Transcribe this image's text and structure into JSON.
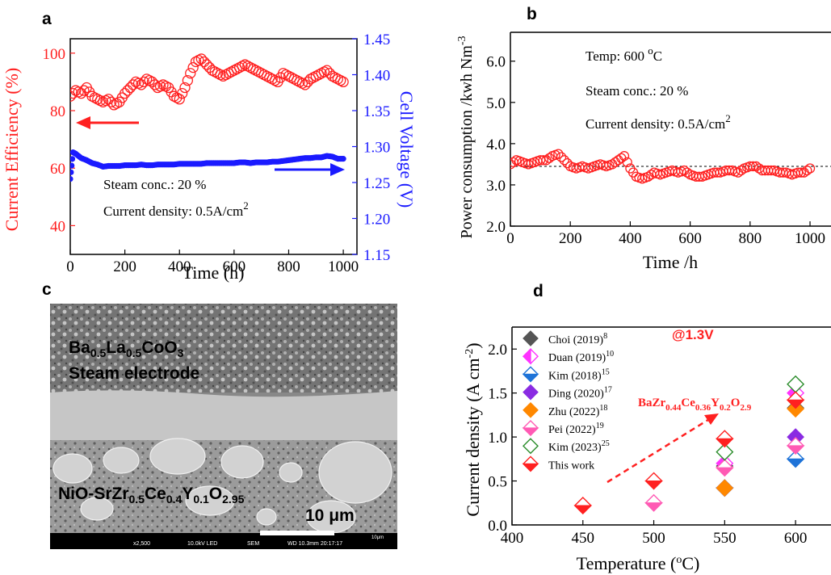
{
  "panels": {
    "a": {
      "letter": "a"
    },
    "b": {
      "letter": "b"
    },
    "c": {
      "letter": "c"
    },
    "d": {
      "letter": "d"
    }
  },
  "colors": {
    "red": "#ff2020",
    "blue": "#1a1aff",
    "black": "#000000"
  },
  "chart_data": [
    {
      "id": "a",
      "type": "scatter",
      "xlabel": "Time (h)",
      "ylabel": "Current Efficiency (%)",
      "ylabel_right": "Cell Voltage (V)",
      "xlim": [
        0,
        1050
      ],
      "ylim": [
        30,
        105
      ],
      "ylim_right": [
        1.15,
        1.45
      ],
      "x_ticks": [
        0,
        200,
        400,
        600,
        800,
        1000
      ],
      "y_ticks": [
        40,
        60,
        80,
        100
      ],
      "y_ticks_right": [
        1.15,
        1.2,
        1.25,
        1.3,
        1.35,
        1.4,
        1.45
      ],
      "annotations": [
        "Steam conc.: 20 %",
        "Current density: 0.5A/cm",
        "2"
      ],
      "series": [
        {
          "axis": "left",
          "color": "#ff2020",
          "marker": "open-circle",
          "x": [
            0,
            20,
            40,
            60,
            80,
            100,
            120,
            140,
            160,
            180,
            200,
            220,
            240,
            260,
            280,
            300,
            320,
            340,
            360,
            380,
            400,
            420,
            440,
            460,
            480,
            500,
            520,
            540,
            560,
            580,
            600,
            620,
            640,
            660,
            680,
            700,
            720,
            740,
            760,
            780,
            800,
            820,
            840,
            860,
            880,
            900,
            920,
            940,
            960,
            980,
            1000
          ],
          "y": [
            85,
            87,
            86,
            88,
            85,
            84,
            83,
            84,
            82,
            83,
            86,
            88,
            90,
            89,
            91,
            90,
            88,
            89,
            88,
            85,
            84,
            88,
            93,
            97,
            98,
            96,
            94,
            93,
            92,
            93,
            94,
            95,
            96,
            95,
            94,
            93,
            92,
            91,
            90,
            93,
            92,
            91,
            90,
            89,
            91,
            92,
            93,
            94,
            92,
            91,
            90
          ]
        },
        {
          "axis": "right",
          "color": "#1a1aff",
          "marker": "filled-circle",
          "x": [
            0,
            10,
            20,
            40,
            60,
            80,
            100,
            120,
            140,
            160,
            180,
            200,
            220,
            240,
            260,
            280,
            300,
            320,
            340,
            360,
            380,
            400,
            420,
            440,
            460,
            480,
            500,
            520,
            540,
            560,
            580,
            600,
            620,
            640,
            660,
            680,
            700,
            720,
            740,
            760,
            780,
            800,
            820,
            840,
            860,
            880,
            900,
            920,
            940,
            960,
            980,
            1000
          ],
          "y": [
            1.255,
            1.292,
            1.29,
            1.284,
            1.281,
            1.277,
            1.275,
            1.272,
            1.273,
            1.273,
            1.273,
            1.274,
            1.274,
            1.274,
            1.275,
            1.274,
            1.274,
            1.275,
            1.275,
            1.275,
            1.275,
            1.276,
            1.276,
            1.276,
            1.276,
            1.276,
            1.277,
            1.277,
            1.277,
            1.277,
            1.277,
            1.277,
            1.278,
            1.278,
            1.277,
            1.278,
            1.278,
            1.278,
            1.279,
            1.279,
            1.28,
            1.281,
            1.282,
            1.283,
            1.284,
            1.284,
            1.285,
            1.285,
            1.287,
            1.286,
            1.283,
            1.283
          ]
        }
      ]
    },
    {
      "id": "b",
      "type": "scatter",
      "xlabel": "Time /h",
      "ylabel": "Power consumption /kwh Nm",
      "ylabel_sup": "-3",
      "xlim": [
        0,
        1070
      ],
      "ylim": [
        2.0,
        6.7
      ],
      "x_ticks": [
        0,
        200,
        400,
        600,
        800,
        1000
      ],
      "y_ticks": [
        2.0,
        3.0,
        4.0,
        5.0,
        6.0
      ],
      "reference_line": 3.45,
      "annotations": [
        "Temp: 600 ",
        "o",
        "C",
        "Steam conc.: 20 %",
        "Current density: 0.5A/cm",
        "2"
      ],
      "series": [
        {
          "color": "#ff2020",
          "marker": "open-circle",
          "x": [
            0,
            20,
            40,
            60,
            80,
            100,
            120,
            140,
            160,
            180,
            200,
            220,
            240,
            260,
            280,
            300,
            320,
            340,
            360,
            380,
            400,
            420,
            440,
            460,
            480,
            500,
            520,
            540,
            560,
            580,
            600,
            620,
            640,
            660,
            680,
            700,
            720,
            740,
            760,
            780,
            800,
            820,
            840,
            860,
            880,
            900,
            920,
            940,
            960,
            980,
            1000
          ],
          "y": [
            3.5,
            3.6,
            3.55,
            3.5,
            3.55,
            3.6,
            3.6,
            3.7,
            3.75,
            3.6,
            3.45,
            3.4,
            3.45,
            3.4,
            3.45,
            3.5,
            3.45,
            3.5,
            3.6,
            3.7,
            3.4,
            3.2,
            3.15,
            3.2,
            3.3,
            3.25,
            3.3,
            3.35,
            3.3,
            3.35,
            3.25,
            3.2,
            3.2,
            3.25,
            3.3,
            3.3,
            3.35,
            3.35,
            3.3,
            3.4,
            3.45,
            3.45,
            3.35,
            3.35,
            3.35,
            3.3,
            3.3,
            3.25,
            3.3,
            3.3,
            3.4
          ]
        }
      ]
    },
    {
      "id": "d",
      "type": "scatter",
      "xlabel": "Temperature (",
      "xlabel_sup": "o",
      "xlabel_tail": "C)",
      "ylabel": "Current density (A cm",
      "ylabel_sup": "-2",
      "ylabel_tail": ")",
      "xlim": [
        400,
        625
      ],
      "ylim": [
        0.0,
        2.25
      ],
      "x_ticks": [
        400,
        450,
        500,
        550,
        600
      ],
      "y_ticks": [
        0.0,
        0.5,
        1.0,
        1.5,
        2.0
      ],
      "annotations": [
        "@1.3V",
        "BaZr",
        "0.44",
        "Ce",
        "0.36",
        "Y",
        "0.2",
        "O",
        "2.9"
      ],
      "series": [
        {
          "name": "Choi (2019)",
          "ref": "8",
          "color": "#555555",
          "style": "full",
          "x": [
            550,
            600
          ],
          "y": [
            0.67,
            1.33
          ]
        },
        {
          "name": "Duan (2019)",
          "ref": "10",
          "color": "#ff33ff",
          "style": "left",
          "x": [
            550,
            600
          ],
          "y": [
            0.7,
            1.5
          ]
        },
        {
          "name": "Kim (2018)",
          "ref": "15",
          "color": "#1e73d8",
          "style": "up",
          "x": [
            550,
            600
          ],
          "y": [
            0.42,
            0.75
          ]
        },
        {
          "name": "Ding (2020)",
          "ref": "17",
          "color": "#8a2be2",
          "style": "full",
          "x": [
            550,
            600
          ],
          "y": [
            0.42,
            1.0
          ]
        },
        {
          "name": "Zhu (2022)",
          "ref": "18",
          "color": "#ff8800",
          "style": "full",
          "x": [
            550,
            600
          ],
          "y": [
            0.42,
            1.32
          ]
        },
        {
          "name": "Pei (2022)",
          "ref": "19",
          "color": "#ff5ab4",
          "style": "down",
          "x": [
            500,
            550,
            600
          ],
          "y": [
            0.25,
            0.65,
            0.9
          ]
        },
        {
          "name": "Kim (2023)",
          "ref": "25",
          "color": "#2a8c2a",
          "style": "open",
          "x": [
            550,
            600
          ],
          "y": [
            0.83,
            1.6
          ]
        },
        {
          "name": "This work",
          "ref": "",
          "color": "#ff2020",
          "style": "up",
          "x": [
            450,
            500,
            550,
            600
          ],
          "y": [
            0.22,
            0.5,
            0.98,
            1.42
          ]
        }
      ]
    }
  ],
  "sem": {
    "top_layer_main": "Ba",
    "top_layer_sub1": "0.5",
    "top_layer_mid": "La",
    "top_layer_sub2": "0.5",
    "top_layer_tail": "CoO",
    "top_layer_sub3": "3",
    "top_layer_line2": "Steam electrode",
    "bottom_main": "NiO-SrZr",
    "bottom_sub1": "0.5",
    "bottom_ce": "Ce",
    "bottom_sub2": "0.4",
    "bottom_y": "Y",
    "bottom_sub3": "0.1",
    "bottom_o": "O",
    "bottom_sub4": "2.95",
    "scale_bar": "10 μm",
    "footer": [
      "x2,500",
      "10.0kV LED",
      "SEM",
      "WD 10.3mm 20:17:17"
    ],
    "footer_scale": "10μm"
  }
}
